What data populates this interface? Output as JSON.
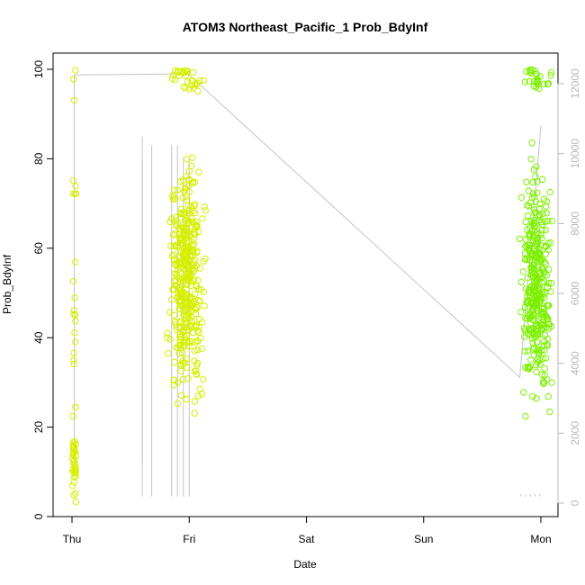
{
  "chart_data": {
    "type": "scatter",
    "title": "ATOM3 Northeast_Pacific_1 Prob_BdyInf",
    "xlabel": "Date",
    "ylabel": "Prob_BdyInf",
    "x_ticks": [
      "Thu",
      "Fri",
      "Sat",
      "Sun",
      "Mon"
    ],
    "x_range_days": [
      0,
      4
    ],
    "ylim": [
      0,
      100
    ],
    "y_ticks": [
      0,
      20,
      40,
      60,
      80,
      100
    ],
    "y2lim": [
      0,
      12500
    ],
    "y2_ticks": [
      0,
      2000,
      4000,
      6000,
      8000,
      10000,
      12000
    ],
    "grid": false,
    "colors": {
      "points_yellow": "#d6ef00",
      "points_green": "#7cf000",
      "line": "#c4c4c4",
      "axis": "#000000",
      "right_axis": "#b8b8b8"
    },
    "clusters": [
      {
        "x_center": 0.02,
        "x_spread": 0.03,
        "count": 60,
        "y_mode": "low_spread",
        "color": "points_yellow"
      },
      {
        "x_center": 0.98,
        "x_spread": 0.22,
        "count": 420,
        "y_mode": "mid_cluster",
        "color": "points_yellow"
      },
      {
        "x_center": 3.97,
        "x_spread": 0.2,
        "count": 380,
        "y_mode": "mid_cluster",
        "color": "points_green"
      }
    ],
    "count_line": [
      {
        "x": 0.02,
        "y2": 820
      },
      {
        "x": 0.02,
        "y2": 12250
      },
      {
        "x": 0.98,
        "y2": 12280
      },
      {
        "x": 1.0,
        "y2": 12380
      },
      {
        "x": 1.0,
        "y2": 12250
      },
      {
        "x": 3.82,
        "y2": 3600
      },
      {
        "x": 4.0,
        "y2": 10800
      }
    ]
  }
}
